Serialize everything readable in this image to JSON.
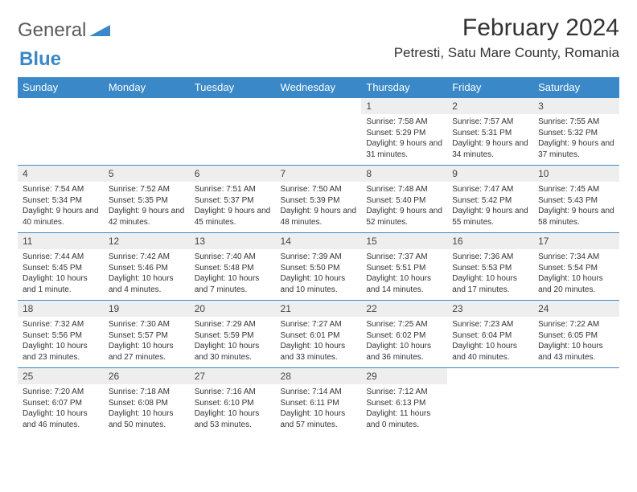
{
  "logo": {
    "text1": "General",
    "text2": "Blue"
  },
  "title": "February 2024",
  "location": "Petresti, Satu Mare County, Romania",
  "colors": {
    "header_bg": "#3a88c7",
    "header_text": "#ffffff",
    "date_row_bg": "#eeeeee",
    "border": "#3a88c7",
    "text": "#333333"
  },
  "dayNames": [
    "Sunday",
    "Monday",
    "Tuesday",
    "Wednesday",
    "Thursday",
    "Friday",
    "Saturday"
  ],
  "weeks": [
    {
      "dates": [
        "",
        "",
        "",
        "",
        "1",
        "2",
        "3"
      ],
      "info": [
        "",
        "",
        "",
        "",
        "Sunrise: 7:58 AM\nSunset: 5:29 PM\nDaylight: 9 hours and 31 minutes.",
        "Sunrise: 7:57 AM\nSunset: 5:31 PM\nDaylight: 9 hours and 34 minutes.",
        "Sunrise: 7:55 AM\nSunset: 5:32 PM\nDaylight: 9 hours and 37 minutes."
      ]
    },
    {
      "dates": [
        "4",
        "5",
        "6",
        "7",
        "8",
        "9",
        "10"
      ],
      "info": [
        "Sunrise: 7:54 AM\nSunset: 5:34 PM\nDaylight: 9 hours and 40 minutes.",
        "Sunrise: 7:52 AM\nSunset: 5:35 PM\nDaylight: 9 hours and 42 minutes.",
        "Sunrise: 7:51 AM\nSunset: 5:37 PM\nDaylight: 9 hours and 45 minutes.",
        "Sunrise: 7:50 AM\nSunset: 5:39 PM\nDaylight: 9 hours and 48 minutes.",
        "Sunrise: 7:48 AM\nSunset: 5:40 PM\nDaylight: 9 hours and 52 minutes.",
        "Sunrise: 7:47 AM\nSunset: 5:42 PM\nDaylight: 9 hours and 55 minutes.",
        "Sunrise: 7:45 AM\nSunset: 5:43 PM\nDaylight: 9 hours and 58 minutes."
      ]
    },
    {
      "dates": [
        "11",
        "12",
        "13",
        "14",
        "15",
        "16",
        "17"
      ],
      "info": [
        "Sunrise: 7:44 AM\nSunset: 5:45 PM\nDaylight: 10 hours and 1 minute.",
        "Sunrise: 7:42 AM\nSunset: 5:46 PM\nDaylight: 10 hours and 4 minutes.",
        "Sunrise: 7:40 AM\nSunset: 5:48 PM\nDaylight: 10 hours and 7 minutes.",
        "Sunrise: 7:39 AM\nSunset: 5:50 PM\nDaylight: 10 hours and 10 minutes.",
        "Sunrise: 7:37 AM\nSunset: 5:51 PM\nDaylight: 10 hours and 14 minutes.",
        "Sunrise: 7:36 AM\nSunset: 5:53 PM\nDaylight: 10 hours and 17 minutes.",
        "Sunrise: 7:34 AM\nSunset: 5:54 PM\nDaylight: 10 hours and 20 minutes."
      ]
    },
    {
      "dates": [
        "18",
        "19",
        "20",
        "21",
        "22",
        "23",
        "24"
      ],
      "info": [
        "Sunrise: 7:32 AM\nSunset: 5:56 PM\nDaylight: 10 hours and 23 minutes.",
        "Sunrise: 7:30 AM\nSunset: 5:57 PM\nDaylight: 10 hours and 27 minutes.",
        "Sunrise: 7:29 AM\nSunset: 5:59 PM\nDaylight: 10 hours and 30 minutes.",
        "Sunrise: 7:27 AM\nSunset: 6:01 PM\nDaylight: 10 hours and 33 minutes.",
        "Sunrise: 7:25 AM\nSunset: 6:02 PM\nDaylight: 10 hours and 36 minutes.",
        "Sunrise: 7:23 AM\nSunset: 6:04 PM\nDaylight: 10 hours and 40 minutes.",
        "Sunrise: 7:22 AM\nSunset: 6:05 PM\nDaylight: 10 hours and 43 minutes."
      ]
    },
    {
      "dates": [
        "25",
        "26",
        "27",
        "28",
        "29",
        "",
        ""
      ],
      "info": [
        "Sunrise: 7:20 AM\nSunset: 6:07 PM\nDaylight: 10 hours and 46 minutes.",
        "Sunrise: 7:18 AM\nSunset: 6:08 PM\nDaylight: 10 hours and 50 minutes.",
        "Sunrise: 7:16 AM\nSunset: 6:10 PM\nDaylight: 10 hours and 53 minutes.",
        "Sunrise: 7:14 AM\nSunset: 6:11 PM\nDaylight: 10 hours and 57 minutes.",
        "Sunrise: 7:12 AM\nSunset: 6:13 PM\nDaylight: 11 hours and 0 minutes.",
        "",
        ""
      ]
    }
  ]
}
